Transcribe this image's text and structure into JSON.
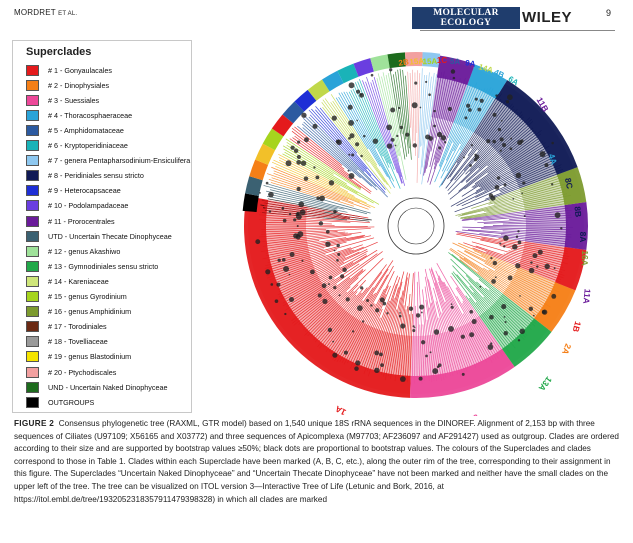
{
  "header": {
    "author": "MORDRET",
    "et_al": "ET AL.",
    "journal_line1": "MOLECULAR ECOLOGY",
    "journal_line2": "RESOURCES",
    "publisher": "WILEY",
    "page": "9"
  },
  "legend": {
    "title": "Superclades",
    "items": [
      {
        "label": "# 1 - Gonyaulacales",
        "color": "#e41a1c"
      },
      {
        "label": "# 2 - Dinophysiales",
        "color": "#f57f17"
      },
      {
        "label": "# 3 - Suessiales",
        "color": "#ec4899"
      },
      {
        "label": "# 4 - Thoracosphaeraceae",
        "color": "#2aa3d8"
      },
      {
        "label": "# 5 - Amphidomataceae",
        "color": "#2c5aa0"
      },
      {
        "label": "# 6 - Kryptoperidiniaceae",
        "color": "#1ab3b8"
      },
      {
        "label": "# 7 - genera Pentapharsodinium-Ensiculifera",
        "color": "#8ec8f0"
      },
      {
        "label": "# 8 - Peridiniales sensu stricto",
        "color": "#101a55"
      },
      {
        "label": "# 9 - Heterocapsaceae",
        "color": "#1e2fd6"
      },
      {
        "label": "# 10 - Podolampadaceae",
        "color": "#6a3ee0"
      },
      {
        "label": "# 11 - Prorocentrales",
        "color": "#6a1b9a"
      },
      {
        "label": "UTD - Uncertain Thecate Dinophyceae",
        "color": "#3b6172"
      },
      {
        "label": "# 12 - genus Akashiwo",
        "color": "#9fe29a"
      },
      {
        "label": "# 13 - Gymnodiniales sensu stricto",
        "color": "#22a84a"
      },
      {
        "label": "# 14 - Kareniaceae",
        "color": "#cfe67a"
      },
      {
        "label": "# 15 - genus Gyrodinium",
        "color": "#a6d41e"
      },
      {
        "label": "# 16 - genus Amphidinium",
        "color": "#7d9b2f"
      },
      {
        "label": "# 17 - Torodiniales",
        "color": "#6b2a14"
      },
      {
        "label": "# 18 - Tovelliaceae",
        "color": "#9a9a9a"
      },
      {
        "label": "# 19 - genus Blastodinium",
        "color": "#f5e400"
      },
      {
        "label": "# 20 - Ptychodiscales",
        "color": "#f2a0a0"
      },
      {
        "label": "UND - Uncertain Naked Dinophyceae",
        "color": "#1d6b1d"
      },
      {
        "label": "OUTGROUPS",
        "color": "#000000"
      }
    ]
  },
  "tree_labels": {
    "top": [
      {
        "text": "2B",
        "color": "#f57f17"
      },
      {
        "text": "15A",
        "color": "#f2c029"
      },
      {
        "text": "15A",
        "color": "#a6d41e"
      },
      {
        "text": "1C",
        "color": "#e41a1c"
      },
      {
        "text": "5A",
        "color": "#2c5aa0"
      },
      {
        "text": "9A",
        "color": "#1e2fd6"
      },
      {
        "text": "14A",
        "color": "#c0d84a"
      },
      {
        "text": "4B",
        "color": "#2aa3d8"
      },
      {
        "text": "6A",
        "color": "#1ab3b8"
      }
    ],
    "rim": [
      {
        "text": "11B",
        "color": "#6a1b9a"
      },
      {
        "text": "4A",
        "color": "#2aa3d8"
      },
      {
        "text": "8C",
        "color": "#101a55"
      },
      {
        "text": "8B",
        "color": "#101a55"
      },
      {
        "text": "8A",
        "color": "#101a55"
      },
      {
        "text": "16A",
        "color": "#7d9b2f"
      },
      {
        "text": "11A",
        "color": "#6a1b9a"
      },
      {
        "text": "1B",
        "color": "#e41a1c"
      },
      {
        "text": "2A",
        "color": "#f57f17"
      },
      {
        "text": "13A",
        "color": "#22a84a"
      },
      {
        "text": "3A",
        "color": "#ec4899"
      },
      {
        "text": "1A",
        "color": "#e41a1c"
      }
    ]
  },
  "caption": {
    "figure": "FIGURE 2",
    "text": "Consensus phylogenetic tree (RAXML, GTR model) based on 1,540 unique 18S rRNA sequences in the DINOREF. Alignment of 2,153 bp with three sequences of Ciliates (U97109; X56165 and X03772) and three sequences of Apicomplexa (M97703; AF236097 and AF291427) used as outgroup. Clades are ordered according to their size and are supported by bootstrap values ≥50%; black dots are proportional to bootstrap values. The colours of the Superclades and clades correspond to those in Table 1. Clades within each Superclade have been marked (A, B, C, etc.), along the outer rim of the tree, corresponding to their assignment in this figure. The Superclades “Uncertain Naked Dinophyceae” and “Uncertain Thecate Dinophyceae” have not been marked and neither have the small clades on the upper left of the tree. The tree can be visualized on ITOL version 3—Interactive Tree of Life (Letunic and Bork, 2016, at https://itol.embl.de/tree/193205231835791147939​8328) in which all clades are marked"
  }
}
